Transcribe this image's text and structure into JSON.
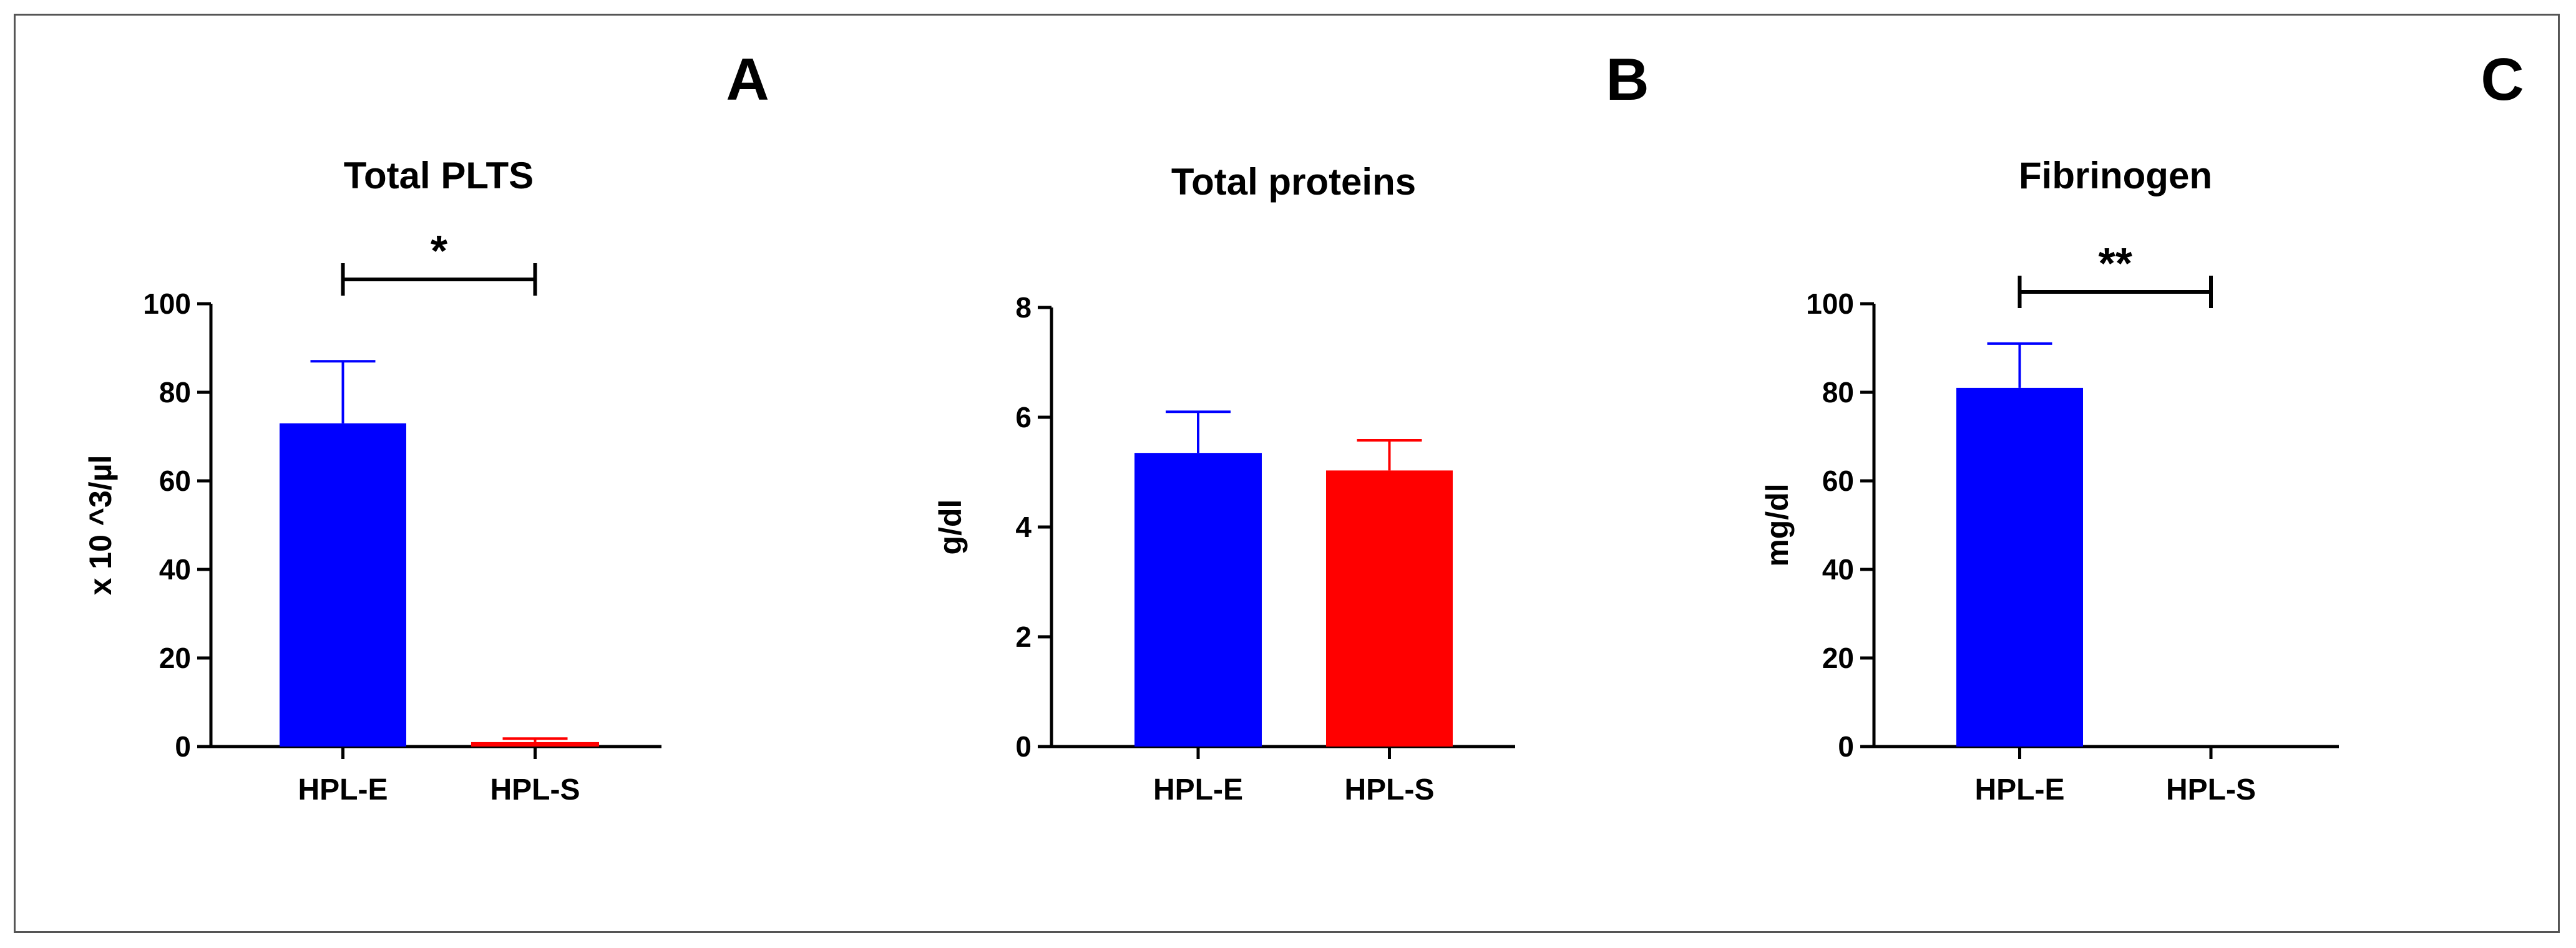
{
  "chart_data": [
    {
      "type": "bar",
      "panel_label": "A",
      "title": "Total PLTS",
      "ylabel": "x 10 ^3/µl",
      "categories": [
        "HPL-E",
        "HPL-S"
      ],
      "values": [
        73,
        1
      ],
      "errors": [
        14,
        0.8
      ],
      "colors": [
        "#0000ff",
        "#ff0000"
      ],
      "ylim": [
        0,
        100
      ],
      "yticks": [
        0,
        20,
        40,
        60,
        80,
        100
      ],
      "significance": "*"
    },
    {
      "type": "bar",
      "panel_label": "B",
      "title": "Total proteins",
      "ylabel": "g/dl",
      "categories": [
        "HPL-E",
        "HPL-S"
      ],
      "values": [
        5.35,
        5.03
      ],
      "errors": [
        0.75,
        0.55
      ],
      "colors": [
        "#0000ff",
        "#ff0000"
      ],
      "ylim": [
        0,
        8
      ],
      "yticks": [
        0,
        2,
        4,
        6,
        8
      ],
      "significance": ""
    },
    {
      "type": "bar",
      "panel_label": "C",
      "title": "Fibrinogen",
      "ylabel": "mg/dl",
      "categories": [
        "HPL-E",
        "HPL-S"
      ],
      "values": [
        81,
        0
      ],
      "errors": [
        10,
        0
      ],
      "colors": [
        "#0000ff",
        "#ff0000"
      ],
      "ylim": [
        0,
        100
      ],
      "yticks": [
        0,
        20,
        40,
        60,
        80,
        100
      ],
      "significance": "**"
    }
  ]
}
